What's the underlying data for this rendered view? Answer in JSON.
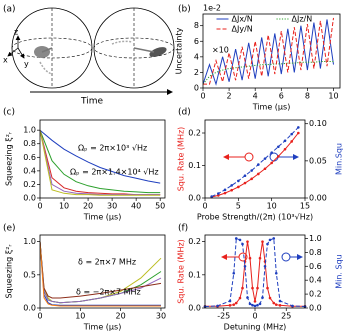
{
  "diagram": {
    "label": "(a)",
    "axes": [
      "z",
      "x",
      "y"
    ],
    "caption": "Time"
  },
  "chart_data": [
    {
      "type": "line",
      "label": "(b)",
      "xlabel": "Time (μs)",
      "ylabel": "Uncertainty",
      "y_multiplier": "1e-2",
      "xlim": [
        0,
        10.5
      ],
      "xticks": [
        0,
        2,
        4,
        6,
        8,
        10
      ],
      "ylim": [
        0,
        9.5
      ],
      "yticks": [
        0,
        2,
        4,
        6,
        8
      ],
      "legend": "upper center",
      "annotations": [
        "×10"
      ],
      "x": [
        0,
        0.5,
        1,
        1.5,
        2,
        2.5,
        3,
        3.5,
        4,
        4.5,
        5,
        5.5,
        6,
        6.5,
        7,
        7.5,
        8,
        8.5,
        9,
        9.5,
        10
      ],
      "series": [
        {
          "name": "ΔJx/N",
          "color": "#1f3fbf",
          "style": "solid",
          "values": [
            0.5,
            3,
            0.5,
            4,
            0.8,
            5,
            1,
            5.8,
            1.2,
            6.5,
            1.5,
            7,
            1.8,
            7.6,
            2,
            8,
            2.3,
            8.4,
            2.5,
            8.8,
            3
          ]
        },
        {
          "name": "ΔJz/N",
          "color": "#2ca02c",
          "style": "dotted",
          "values": [
            0.5,
            1.5,
            2,
            2.3,
            2.5,
            2.6,
            2.7,
            2.8,
            2.9,
            3,
            3,
            3.1,
            3.1,
            3.2,
            3.2,
            3.3,
            3.3,
            3.3,
            3.4,
            3.4,
            3.4
          ]
        },
        {
          "name": "ΔJy/N",
          "color": "#e8211c",
          "style": "dashed",
          "values": [
            0.5,
            0.5,
            3.5,
            0.8,
            4.5,
            1,
            5.3,
            1.2,
            6,
            1.5,
            6.8,
            1.8,
            7.3,
            2,
            7.8,
            2.3,
            8.2,
            2.5,
            8.6,
            2.8,
            9
          ]
        }
      ]
    },
    {
      "type": "line",
      "label": "(c)",
      "xlabel": "Time (μs)",
      "ylabel": "Squeezing ξ²ᵣ",
      "xlim": [
        0,
        52
      ],
      "xticks": [
        0,
        10,
        20,
        30,
        40,
        50
      ],
      "ylim": [
        0,
        1.15
      ],
      "yticks": [
        {
          "value": 0,
          "label": "0.0"
        },
        0.2,
        0.4,
        0.6,
        0.8,
        {
          "value": 1,
          "label": "1.0"
        }
      ],
      "annotations": [
        "Ωₚ = 2π×10³ √Hz",
        "Ωₚ = 2π×1.4×10⁴ √Hz"
      ],
      "x": [
        0,
        5,
        10,
        15,
        20,
        25,
        30,
        35,
        40,
        45,
        50
      ],
      "series": [
        {
          "color": "#1f3fbf",
          "style": "solid",
          "values": [
            1.0,
            0.85,
            0.72,
            0.62,
            0.53,
            0.45,
            0.39,
            0.33,
            0.29,
            0.25,
            0.22
          ]
        },
        {
          "color": "#2ca02c",
          "style": "solid",
          "values": [
            1.0,
            0.55,
            0.35,
            0.24,
            0.18,
            0.14,
            0.12,
            0.1,
            0.09,
            0.08,
            0.08
          ]
        },
        {
          "color": "#d62728",
          "style": "solid",
          "values": [
            1.0,
            0.3,
            0.15,
            0.1,
            0.08,
            0.07,
            0.06,
            0.06,
            0.05,
            0.05,
            0.05
          ]
        },
        {
          "color": "#9467bd",
          "style": "solid",
          "values": [
            1.0,
            0.2,
            0.1,
            0.07,
            0.06,
            0.05,
            0.05,
            0.05,
            0.05,
            0.05,
            0.05
          ]
        },
        {
          "color": "#bcbd22",
          "style": "solid",
          "values": [
            1.0,
            0.12,
            0.07,
            0.05,
            0.05,
            0.04,
            0.04,
            0.04,
            0.04,
            0.04,
            0.04
          ]
        }
      ]
    },
    {
      "type": "line",
      "label": "(d)",
      "xlabel": "Probe Strength/(2π) (10³√Hz)",
      "ylabel": "Squ. Rate (MHz)",
      "y2label": "Min.Squ",
      "ylabel_color": "#e8211c",
      "y2label_color": "#1f3fbf",
      "xlim": [
        0,
        15
      ],
      "xticks": [
        0,
        5,
        10,
        15
      ],
      "ylim": [
        0,
        0.24
      ],
      "yticks": [
        {
          "value": 0,
          "label": "0.0"
        },
        0.1,
        0.2
      ],
      "y2lim": [
        0,
        0.105
      ],
      "y2ticks": [
        {
          "value": 0,
          "label": "0.00"
        },
        0.05,
        {
          "value": 0.1,
          "label": "0.10"
        }
      ],
      "x": [
        1,
        2,
        3,
        4,
        5,
        6,
        7,
        8,
        9,
        10,
        11,
        12,
        13,
        14
      ],
      "series": [
        {
          "color": "#e8211c",
          "style": "solid",
          "marker": "o",
          "values": [
            0.003,
            0.008,
            0.015,
            0.024,
            0.034,
            0.046,
            0.059,
            0.074,
            0.09,
            0.108,
            0.128,
            0.15,
            0.174,
            0.2
          ]
        },
        {
          "color": "#1f3fbf",
          "style": "dashed",
          "marker": "o",
          "axis": "y2",
          "values": [
            0.002,
            0.006,
            0.011,
            0.017,
            0.023,
            0.03,
            0.037,
            0.045,
            0.053,
            0.061,
            0.069,
            0.077,
            0.086,
            0.095
          ]
        }
      ]
    },
    {
      "type": "line",
      "label": "(e)",
      "xlabel": "Time (μs)",
      "ylabel": "Squeezing ξ²ᵣ",
      "xlim": [
        0,
        31
      ],
      "xticks": [
        0,
        10,
        20,
        30
      ],
      "ylim": [
        0,
        1.1
      ],
      "yticks": [
        {
          "value": 0,
          "label": "0.0"
        },
        0.5,
        {
          "value": 1,
          "label": "1.0"
        }
      ],
      "annotations": [
        "δ = 2π×7 MHz",
        "δ = −2π×7 MHz"
      ],
      "x": [
        0,
        1,
        2,
        3,
        5,
        10,
        15,
        20,
        25,
        30
      ],
      "series": [
        {
          "color": "#bcbd22",
          "style": "solid",
          "values": [
            1.0,
            0.3,
            0.15,
            0.1,
            0.08,
            0.1,
            0.15,
            0.25,
            0.45,
            0.75
          ]
        },
        {
          "color": "#2ca02c",
          "style": "solid",
          "values": [
            1.0,
            0.25,
            0.12,
            0.1,
            0.08,
            0.1,
            0.15,
            0.22,
            0.35,
            0.55
          ]
        },
        {
          "color": "#9467bd",
          "style": "solid",
          "values": [
            1.0,
            0.25,
            0.12,
            0.1,
            0.08,
            0.1,
            0.15,
            0.22,
            0.3,
            0.45
          ]
        },
        {
          "color": "#8c2d19",
          "style": "solid",
          "values": [
            1.0,
            0.3,
            0.18,
            0.15,
            0.15,
            0.18,
            0.22,
            0.27,
            0.32,
            0.37
          ]
        },
        {
          "color": "#1f3fbf",
          "style": "solid",
          "values": [
            1.0,
            0.2,
            0.08,
            0.05,
            0.04,
            0.04,
            0.04,
            0.04,
            0.04,
            0.04
          ]
        },
        {
          "color": "#ff7f0e",
          "style": "solid",
          "values": [
            1.0,
            0.15,
            0.06,
            0.04,
            0.03,
            0.03,
            0.03,
            0.03,
            0.03,
            0.03
          ]
        }
      ]
    },
    {
      "type": "line",
      "label": "(f)",
      "xlabel": "Detuning (MHz)",
      "ylabel": "Squ. Rate (MHz)",
      "y2label": "Min. Squ",
      "ylabel_color": "#e8211c",
      "y2label_color": "#1f3fbf",
      "xlim": [
        -40,
        40
      ],
      "xticks": [
        -25,
        0,
        25
      ],
      "ylim": [
        0,
        0.22
      ],
      "yticks": [
        {
          "value": 0,
          "label": "0.0"
        },
        0.1,
        0.2
      ],
      "y2lim": [
        0,
        1.05
      ],
      "y2ticks": [
        {
          "value": 0,
          "label": "0.0"
        },
        0.2,
        0.4,
        0.6,
        0.8,
        {
          "value": 1,
          "label": "1.0"
        }
      ],
      "x": [
        -40,
        -30,
        -20,
        -17,
        -15,
        -12,
        -10,
        -8,
        -6,
        -4,
        -2,
        0,
        2,
        4,
        6,
        8,
        10,
        12,
        15,
        17,
        20,
        30,
        40
      ],
      "series": [
        {
          "color": "#e8211c",
          "style": "solid",
          "marker": "o",
          "values": [
            0.005,
            0.005,
            0.008,
            0.01,
            0.015,
            0.03,
            0.06,
            0.14,
            0.2,
            0.15,
            0.06,
            0.02,
            0.06,
            0.15,
            0.2,
            0.14,
            0.06,
            0.03,
            0.015,
            0.01,
            0.008,
            0.005,
            0.005
          ]
        },
        {
          "color": "#1f3fbf",
          "style": "dashed",
          "marker": "o",
          "axis": "y2",
          "values": [
            0.02,
            0.03,
            0.1,
            0.5,
            1.0,
            0.98,
            0.92,
            0.6,
            0.15,
            0.06,
            0.04,
            0.03,
            0.04,
            0.06,
            0.15,
            0.6,
            0.92,
            0.98,
            1.0,
            0.5,
            0.1,
            0.03,
            0.02
          ]
        }
      ]
    }
  ]
}
